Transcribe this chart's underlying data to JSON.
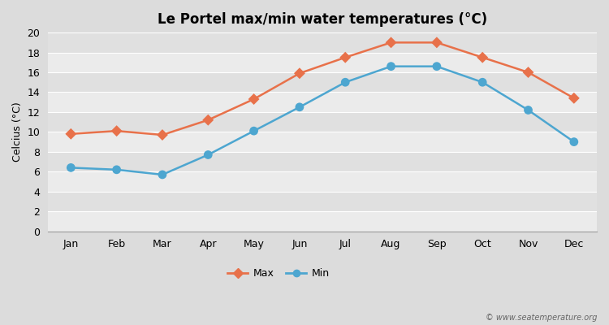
{
  "title": "Le Portel max/min water temperatures (°C)",
  "ylabel": "Celcius (°C)",
  "months": [
    "Jan",
    "Feb",
    "Mar",
    "Apr",
    "May",
    "Jun",
    "Jul",
    "Aug",
    "Sep",
    "Oct",
    "Nov",
    "Dec"
  ],
  "max_temps": [
    9.8,
    10.1,
    9.7,
    11.2,
    13.3,
    15.9,
    17.5,
    19.0,
    19.0,
    17.5,
    16.0,
    13.4
  ],
  "min_temps": [
    6.4,
    6.2,
    5.7,
    7.7,
    10.1,
    12.5,
    15.0,
    16.6,
    16.6,
    15.0,
    12.2,
    9.0
  ],
  "max_color": "#E8714A",
  "min_color": "#4DA6D0",
  "background_color": "#DCDCDC",
  "plot_bg_light": "#EBEBEB",
  "plot_bg_dark": "#E0E0E0",
  "grid_color": "#FFFFFF",
  "ylim": [
    0,
    20
  ],
  "yticks": [
    0,
    2,
    4,
    6,
    8,
    10,
    12,
    14,
    16,
    18,
    20
  ],
  "watermark": "© www.seatemperature.org",
  "legend_max": "Max",
  "legend_min": "Min",
  "title_fontsize": 12,
  "axis_fontsize": 9,
  "ylabel_fontsize": 9
}
